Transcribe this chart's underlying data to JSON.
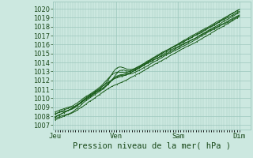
{
  "title": "Pression niveau de la mer( hPa )",
  "ylim": [
    1006.5,
    1020.8
  ],
  "yticks": [
    1007,
    1008,
    1009,
    1010,
    1011,
    1012,
    1013,
    1014,
    1015,
    1016,
    1017,
    1018,
    1019,
    1020
  ],
  "xtick_labels": [
    "Jeu",
    "Ven",
    "Sam",
    "Dim"
  ],
  "xtick_positions": [
    0.0,
    0.333,
    0.667,
    1.0
  ],
  "xlim": [
    -0.01,
    1.06
  ],
  "bg_color": "#cce8e0",
  "grid_color": "#9dc8be",
  "line_color": "#1a5c1a",
  "n_points": 500,
  "n_lines": 7
}
